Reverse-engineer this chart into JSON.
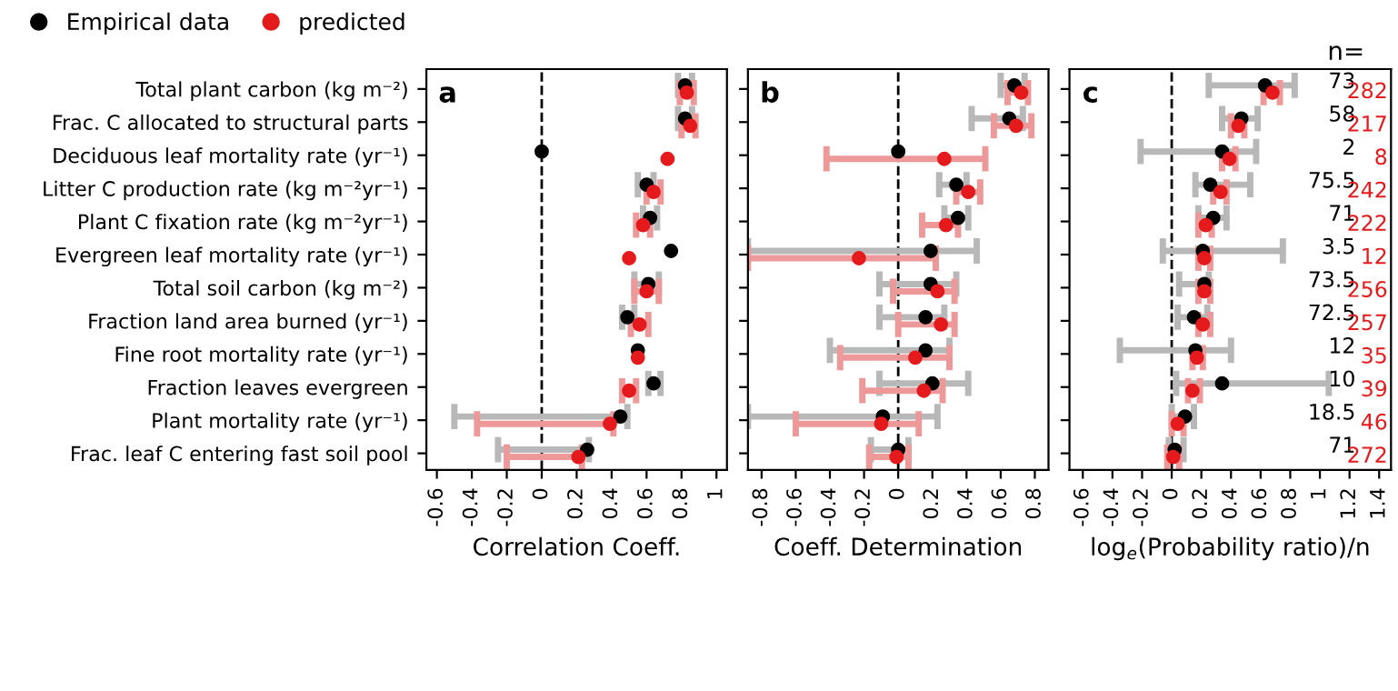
{
  "chart_data": [
    {
      "type": "scatter",
      "title": "a",
      "xlabel": "Correlation Coeff.",
      "orientation": "horizontal",
      "legend": "top left",
      "marker": "circle",
      "grid": false,
      "categories": [
        "Total plant carbon (kg m⁻²)",
        "Frac. C allocated to structural parts",
        "Deciduous leaf mortality rate (yr⁻¹)",
        "Litter C production rate (kg m⁻²yr⁻¹)",
        "Plant C fixation rate (kg m⁻²yr⁻¹)",
        "Evergreen leaf mortality rate (yr⁻¹)",
        "Total soil carbon (kg m⁻²)",
        "Fraction land area burned (yr⁻¹)",
        "Fine root mortality rate (yr⁻¹)",
        "Fraction leaves evergreen",
        "Plant mortality rate (yr⁻¹)",
        "Frac. leaf C entering fast soil pool"
      ],
      "series": [
        {
          "name": "Empirical data",
          "color": "#000000",
          "values": [
            0.82,
            0.82,
            0.0,
            0.6,
            0.62,
            0.74,
            0.61,
            0.49,
            0.55,
            0.64,
            0.45,
            0.26
          ],
          "errors": [
            [
              0.78,
              0.86
            ],
            [
              0.78,
              0.86
            ],
            null,
            [
              0.55,
              0.64
            ],
            [
              0.58,
              0.66
            ],
            null,
            [
              0.53,
              0.67
            ],
            [
              0.46,
              0.53
            ],
            null,
            [
              0.61,
              0.68
            ],
            [
              -0.5,
              0.49
            ],
            [
              -0.25,
              0.27
            ]
          ]
        },
        {
          "name": "predicted",
          "color": "#e41a1c",
          "values": [
            0.83,
            0.85,
            0.72,
            0.64,
            0.58,
            0.5,
            0.6,
            0.56,
            0.55,
            0.5,
            0.39,
            0.21
          ],
          "errors": [
            [
              0.79,
              0.87
            ],
            [
              0.8,
              0.88
            ],
            null,
            [
              0.6,
              0.68
            ],
            [
              0.54,
              0.62
            ],
            null,
            [
              0.53,
              0.67
            ],
            [
              0.51,
              0.61
            ],
            null,
            [
              0.46,
              0.54
            ],
            [
              -0.37,
              0.41
            ],
            [
              -0.2,
              0.23
            ]
          ]
        }
      ],
      "xlim": [
        -0.66,
        1.06
      ],
      "xticks": [
        -0.6,
        -0.4,
        -0.2,
        0,
        0.2,
        0.4,
        0.6,
        0.8,
        1
      ],
      "ref_lines": [
        {
          "axis": "x",
          "value": 0,
          "line_style": "dashed",
          "color": "#000000"
        }
      ]
    },
    {
      "type": "scatter",
      "title": "b",
      "xlabel": "Coeff. Determination",
      "orientation": "horizontal",
      "marker": "circle",
      "grid": false,
      "tick_labels": "x",
      "series": [
        {
          "color": "#000000",
          "values": [
            0.68,
            0.65,
            0.0,
            0.34,
            0.35,
            0.19,
            0.19,
            0.16,
            0.16,
            0.2,
            -0.09,
            0.0
          ],
          "errors": [
            [
              0.6,
              0.74
            ],
            [
              0.43,
              0.73
            ],
            null,
            [
              0.24,
              0.4
            ],
            [
              0.27,
              0.41
            ],
            [
              -0.88,
              0.46
            ],
            [
              -0.11,
              0.34
            ],
            [
              -0.11,
              0.27
            ],
            [
              -0.4,
              0.3
            ],
            [
              -0.11,
              0.41
            ],
            [
              -0.88,
              0.23
            ],
            [
              -0.16,
              0.06
            ]
          ]
        },
        {
          "color": "#e41a1c",
          "values": [
            0.72,
            0.69,
            0.27,
            0.41,
            0.28,
            -0.23,
            0.23,
            0.25,
            0.1,
            0.15,
            -0.1,
            -0.01
          ],
          "errors": [
            [
              0.64,
              0.76
            ],
            [
              0.56,
              0.78
            ],
            [
              -0.42,
              0.51
            ],
            [
              0.34,
              0.48
            ],
            [
              0.14,
              0.35
            ],
            [
              -0.88,
              0.22
            ],
            [
              -0.03,
              0.33
            ],
            [
              0.0,
              0.33
            ],
            [
              -0.34,
              0.3
            ],
            [
              -0.21,
              0.26
            ],
            [
              -0.6,
              0.12
            ],
            [
              -0.17,
              0.06
            ]
          ]
        }
      ],
      "xlim": [
        -0.88,
        0.88
      ],
      "xticks": [
        -0.8,
        -0.6,
        -0.4,
        -0.2,
        0,
        0.2,
        0.4,
        0.6,
        0.8
      ],
      "ref_lines": [
        {
          "axis": "x",
          "value": 0,
          "line_style": "dashed",
          "color": "#000000"
        }
      ]
    },
    {
      "type": "scatter",
      "title": "c",
      "xlabel": "log$_{e}$(Probability ratio)/n",
      "orientation": "horizontal",
      "marker": "circle",
      "grid": false,
      "tick_labels": "x",
      "series": [
        {
          "color": "#000000",
          "values": [
            0.63,
            0.47,
            0.34,
            0.26,
            0.28,
            0.21,
            0.22,
            0.15,
            0.16,
            0.34,
            0.09,
            0.02
          ],
          "errors": [
            [
              0.25,
              0.83
            ],
            [
              0.34,
              0.58
            ],
            [
              -0.21,
              0.57
            ],
            [
              0.16,
              0.53
            ],
            [
              0.18,
              0.37
            ],
            [
              -0.06,
              0.75
            ],
            [
              0.05,
              0.25
            ],
            [
              0.04,
              0.24
            ],
            [
              -0.35,
              0.4
            ],
            [
              0.03,
              1.06
            ],
            [
              0.0,
              0.15
            ],
            [
              -0.02,
              0.08
            ]
          ]
        },
        {
          "color": "#e41a1c",
          "values": [
            0.68,
            0.45,
            0.39,
            0.33,
            0.23,
            0.22,
            0.22,
            0.21,
            0.17,
            0.14,
            0.04,
            0.01
          ],
          "errors": [
            [
              0.62,
              0.73
            ],
            [
              0.4,
              0.49
            ],
            [
              0.34,
              0.43
            ],
            [
              0.28,
              0.37
            ],
            [
              0.18,
              0.27
            ],
            [
              0.18,
              0.26
            ],
            [
              0.18,
              0.26
            ],
            [
              0.18,
              0.26
            ],
            [
              0.14,
              0.21
            ],
            [
              0.11,
              0.19
            ],
            [
              0.0,
              0.08
            ],
            [
              -0.03,
              0.05
            ]
          ]
        }
      ],
      "xlim": [
        -0.69,
        1.48
      ],
      "xticks": [
        -0.6,
        -0.4,
        -0.2,
        0,
        0.2,
        0.4,
        0.6,
        0.8,
        1,
        1.2,
        1.4
      ],
      "ref_lines": [
        {
          "axis": "x",
          "value": 0,
          "line_style": "dashed",
          "color": "#000000"
        }
      ],
      "annotations": [
        "n=",
        "73",
        "282",
        "58",
        "217",
        "2",
        "8",
        "75.5",
        "242",
        "71",
        "222",
        "3.5",
        "12",
        "73.5",
        "256",
        "72.5",
        "257",
        "12",
        "35",
        "10",
        "39",
        "18.5",
        "46",
        "71",
        "272"
      ]
    }
  ]
}
